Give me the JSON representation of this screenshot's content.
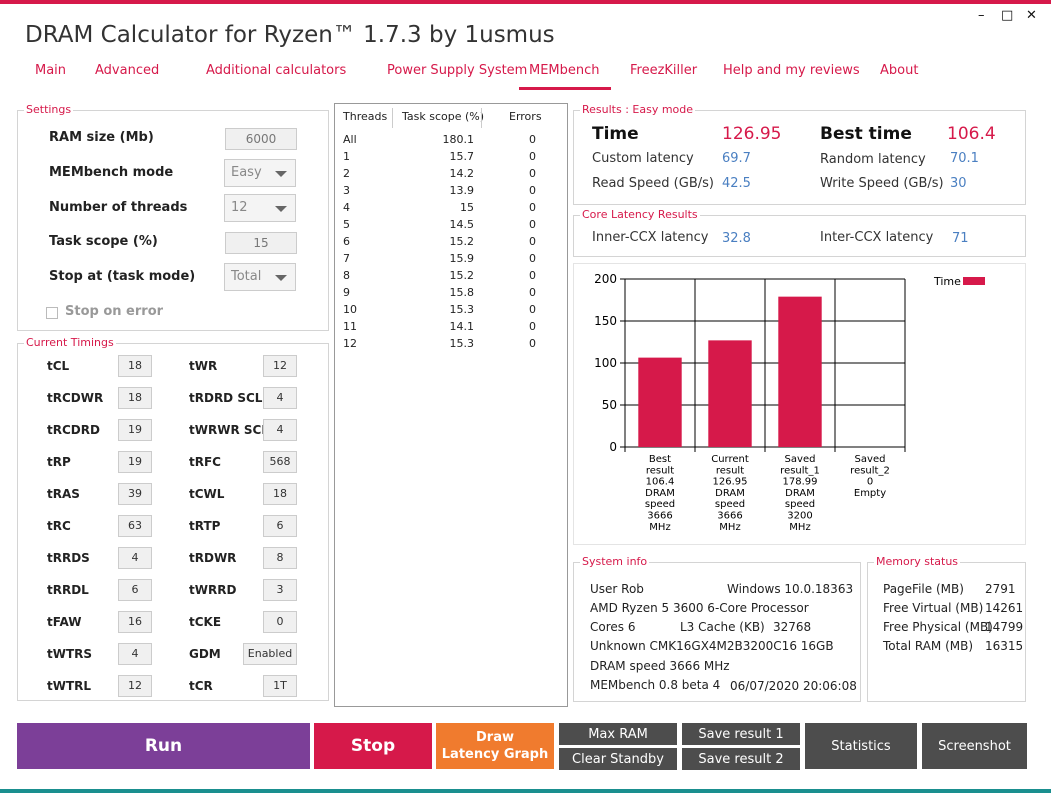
{
  "app": {
    "title": "DRAM Calculator for Ryzen™ 1.7.3 by 1usmus",
    "window_controls": {
      "minimize": "–",
      "maximize": "□",
      "close": "✕"
    }
  },
  "tabs": [
    {
      "label": "Main"
    },
    {
      "label": "Advanced"
    },
    {
      "label": "Additional calculators"
    },
    {
      "label": "Power Supply System"
    },
    {
      "label": "MEMbench",
      "active": true
    },
    {
      "label": "FreezKiller"
    },
    {
      "label": "Help and my reviews"
    },
    {
      "label": "About"
    }
  ],
  "settings": {
    "title": "Settings",
    "ram_size_label": "RAM size (Mb)",
    "ram_size_value": "6000",
    "mode_label": "MEMbench mode",
    "mode_value": "Easy",
    "threads_label": "Number of threads",
    "threads_value": "12",
    "scope_label": "Task scope (%)",
    "scope_value": "15",
    "stop_label": "Stop at (task mode)",
    "stop_value": "Total",
    "stop_on_error_label": "Stop on error",
    "stop_on_error_checked": false
  },
  "timings": {
    "title": "Current Timings",
    "left": [
      {
        "name": "tCL",
        "value": "18"
      },
      {
        "name": "tRCDWR",
        "value": "18"
      },
      {
        "name": "tRCDRD",
        "value": "19"
      },
      {
        "name": "tRP",
        "value": "19"
      },
      {
        "name": "tRAS",
        "value": "39"
      },
      {
        "name": "tRC",
        "value": "63"
      },
      {
        "name": "tRRDS",
        "value": "4"
      },
      {
        "name": "tRRDL",
        "value": "6"
      },
      {
        "name": "tFAW",
        "value": "16"
      },
      {
        "name": "tWTRS",
        "value": "4"
      },
      {
        "name": "tWTRL",
        "value": "12"
      }
    ],
    "right": [
      {
        "name": "tWR",
        "value": "12"
      },
      {
        "name": "tRDRD SCL",
        "value": "4"
      },
      {
        "name": "tWRWR SCL",
        "value": "4"
      },
      {
        "name": "tRFC",
        "value": "568"
      },
      {
        "name": "tCWL",
        "value": "18"
      },
      {
        "name": "tRTP",
        "value": "6"
      },
      {
        "name": "tRDWR",
        "value": "8"
      },
      {
        "name": "tWRRD",
        "value": "3"
      },
      {
        "name": "tCKE",
        "value": "0"
      },
      {
        "name": "GDM",
        "value": "Enabled"
      },
      {
        "name": "tCR",
        "value": "1T"
      }
    ]
  },
  "threads_table": {
    "headers": [
      "Threads",
      "Task scope (%)",
      "Errors"
    ],
    "rows": [
      [
        "All",
        "180.1",
        "0"
      ],
      [
        "1",
        "15.7",
        "0"
      ],
      [
        "2",
        "14.2",
        "0"
      ],
      [
        "3",
        "13.9",
        "0"
      ],
      [
        "4",
        "15",
        "0"
      ],
      [
        "5",
        "14.5",
        "0"
      ],
      [
        "6",
        "15.2",
        "0"
      ],
      [
        "7",
        "15.9",
        "0"
      ],
      [
        "8",
        "15.2",
        "0"
      ],
      [
        "9",
        "15.8",
        "0"
      ],
      [
        "10",
        "15.3",
        "0"
      ],
      [
        "11",
        "14.1",
        "0"
      ],
      [
        "12",
        "15.3",
        "0"
      ]
    ]
  },
  "results": {
    "title": "Results : Easy mode",
    "time_label": "Time",
    "time_value": "126.95",
    "best_label": "Best time",
    "best_value": "106.4",
    "custom_latency_label": "Custom latency",
    "custom_latency_value": "69.7",
    "random_latency_label": "Random latency",
    "random_latency_value": "70.1",
    "read_label": "Read Speed (GB/s)",
    "read_value": "42.5",
    "write_label": "Write Speed (GB/s)",
    "write_value": "30"
  },
  "core_latency": {
    "title": "Core Latency Results",
    "inner_label": "Inner-CCX latency",
    "inner_value": "32.8",
    "inter_label": "Inter-CCX latency",
    "inter_value": "71"
  },
  "chart_data": {
    "type": "bar",
    "title": "",
    "xlabel": "",
    "ylabel": "",
    "ylim": [
      0,
      200
    ],
    "yticks": [
      "0",
      "50",
      "100",
      "150",
      "200"
    ],
    "grid": true,
    "legend_position": "top-right",
    "legend": "Time",
    "series": [
      {
        "name": "Time",
        "values": [
          106.4,
          126.95,
          178.99,
          0
        ]
      }
    ],
    "bar_color": "#d6194a",
    "categories": [
      [
        "Best",
        "result",
        "106.4",
        "DRAM",
        "speed",
        "3666",
        "MHz"
      ],
      [
        "Current",
        "result",
        "126.95",
        "DRAM",
        "speed",
        "3666",
        "MHz"
      ],
      [
        "Saved",
        "result_1",
        "178.99",
        "DRAM",
        "speed",
        "3200",
        "MHz"
      ],
      [
        "Saved",
        "result_2",
        "0",
        "Empty"
      ]
    ]
  },
  "system_info": {
    "title": "System info",
    "user": "User Rob",
    "os": "Windows 10.0.18363",
    "cpu": "AMD Ryzen 5 3600 6-Core Processor",
    "cores": "Cores 6",
    "l3": "L3 Cache (KB)",
    "l3_value": "32768",
    "memory": "Unknown CMK16GX4M2B3200C16  16GB",
    "dram_speed": "DRAM speed 3666 MHz",
    "version": "MEMbench 0.8 beta 4",
    "datetime": "06/07/2020 20:06:08"
  },
  "memory_status": {
    "title": "Memory status",
    "rows": [
      {
        "label": "PageFile (MB)",
        "value": "2791"
      },
      {
        "label": "Free Virtual (MB)",
        "value": "14261"
      },
      {
        "label": "Free Physical (MB)",
        "value": "14799"
      },
      {
        "label": "Total RAM (MB)",
        "value": "16315"
      }
    ]
  },
  "buttons": {
    "run": "Run",
    "stop": "Stop",
    "draw_latency_1": "Draw",
    "draw_latency_2": "Latency Graph",
    "max_ram": "Max RAM",
    "clear_standby": "Clear Standby",
    "save1": "Save result 1",
    "save2": "Save result 2",
    "statistics": "Statistics",
    "screenshot": "Screenshot"
  },
  "colors": {
    "accent": "#d6194a",
    "run": "#7c3f98",
    "draw": "#f07b2e",
    "dark_button": "#4d4d4d",
    "value_blue": "#4a7fc1"
  }
}
